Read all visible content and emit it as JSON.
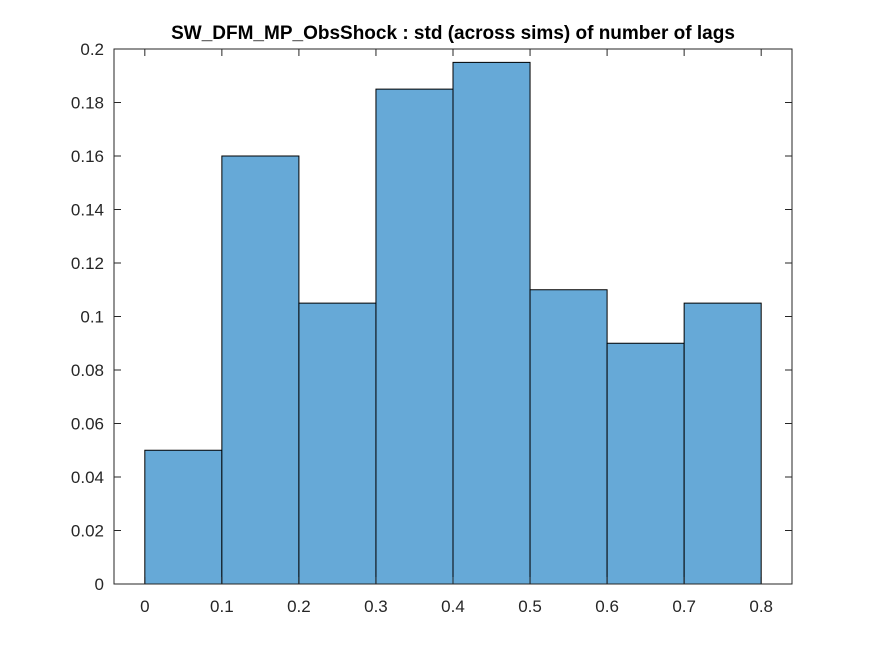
{
  "chart_data": {
    "type": "bar",
    "title": "SW_DFM_MP_ObsShock : std (across sims) of number of lags",
    "xlabel": "",
    "ylabel": "",
    "bin_edges": [
      0,
      0.1,
      0.2,
      0.3,
      0.4,
      0.5,
      0.6,
      0.7,
      0.8
    ],
    "values": [
      0.05,
      0.16,
      0.105,
      0.185,
      0.195,
      0.11,
      0.09,
      0.105
    ],
    "xlim": [
      -0.04,
      0.84
    ],
    "ylim": [
      0,
      0.2
    ],
    "x_ticks": [
      "0",
      "0.1",
      "0.2",
      "0.3",
      "0.4",
      "0.5",
      "0.6",
      "0.7",
      "0.8"
    ],
    "y_ticks": [
      "0",
      "0.02",
      "0.04",
      "0.06",
      "0.08",
      "0.1",
      "0.12",
      "0.14",
      "0.16",
      "0.18",
      "0.2"
    ],
    "grid": false,
    "bar_color": "#66a9d7",
    "edge_color": "#000000"
  }
}
